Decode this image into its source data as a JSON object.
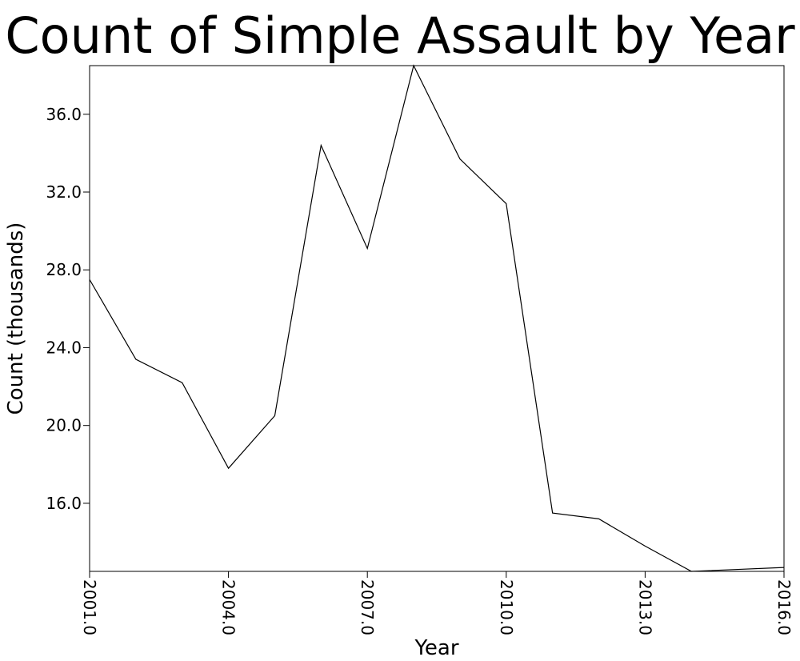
{
  "chart_data": {
    "type": "line",
    "title": "Count of Simple Assault by Year",
    "xlabel": "Year",
    "ylabel": "Count (thousands)",
    "x": [
      2001,
      2002,
      2003,
      2004,
      2005,
      2006,
      2007,
      2008,
      2009,
      2010,
      2011,
      2012,
      2013,
      2014,
      2015,
      2016
    ],
    "series": [
      {
        "values": [
          27.5,
          23.4,
          22.2,
          17.8,
          20.5,
          34.4,
          29.1,
          38.5,
          33.7,
          31.4,
          15.5,
          15.2,
          13.8,
          12.5,
          12.6,
          12.7
        ]
      }
    ],
    "xlim": [
      2001,
      2016
    ],
    "ylim": [
      12.5,
      38.5
    ],
    "xticks": [
      "2001.0",
      "2004.0",
      "2007.0",
      "2010.0",
      "2013.0",
      "2016.0"
    ],
    "yticks": [
      "16.0",
      "20.0",
      "24.0",
      "28.0",
      "32.0",
      "36.0"
    ],
    "grid": false,
    "line_color": "#000000"
  }
}
